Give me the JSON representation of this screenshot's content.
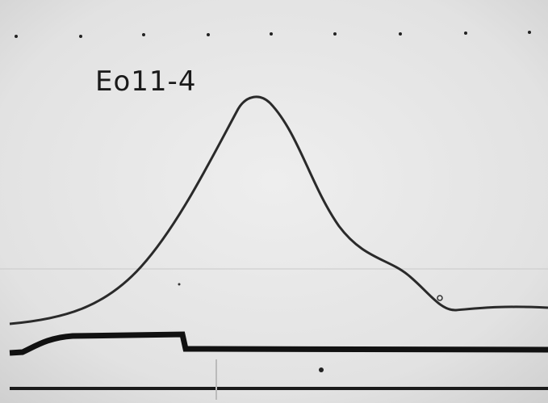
{
  "label": "Eo11-4"
}
